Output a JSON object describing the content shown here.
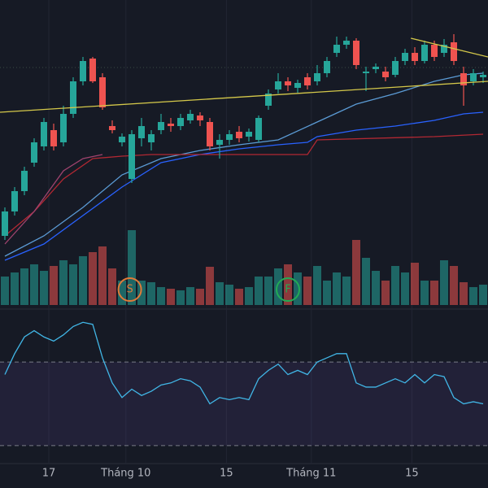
{
  "chart_data": {
    "type": "candlestick",
    "up_color": "#26a69a",
    "down_color": "#ef5350",
    "xlim": [
      -0.5,
      49.5
    ],
    "ylim": [
      25,
      400
    ],
    "open": [
      110,
      140,
      165,
      200,
      220,
      240,
      225,
      260,
      300,
      328,
      305,
      245,
      225,
      180,
      230,
      225,
      240,
      248,
      245,
      252,
      258,
      250,
      222,
      228,
      238,
      232,
      228,
      270,
      290,
      300,
      292,
      305,
      300,
      310,
      335,
      345,
      350,
      310,
      315,
      312,
      308,
      325,
      335,
      325,
      345,
      335,
      348,
      310,
      300,
      305
    ],
    "high": [
      145,
      170,
      195,
      230,
      255,
      248,
      270,
      305,
      330,
      330,
      310,
      252,
      236,
      240,
      255,
      240,
      260,
      255,
      260,
      265,
      262,
      255,
      235,
      240,
      245,
      242,
      258,
      290,
      310,
      305,
      302,
      310,
      320,
      330,
      355,
      355,
      353,
      318,
      322,
      318,
      330,
      340,
      342,
      350,
      350,
      352,
      358,
      318,
      315,
      312
    ],
    "low": [
      105,
      135,
      160,
      195,
      215,
      215,
      220,
      255,
      295,
      298,
      265,
      236,
      220,
      175,
      220,
      215,
      235,
      238,
      240,
      248,
      245,
      215,
      205,
      222,
      225,
      226,
      225,
      265,
      285,
      288,
      286,
      290,
      295,
      305,
      330,
      340,
      315,
      288,
      310,
      300,
      305,
      320,
      320,
      322,
      325,
      330,
      320,
      270,
      295,
      298
    ],
    "close": [
      140,
      165,
      190,
      225,
      250,
      220,
      260,
      300,
      325,
      300,
      268,
      240,
      232,
      235,
      245,
      235,
      250,
      245,
      255,
      260,
      252,
      220,
      228,
      235,
      230,
      238,
      255,
      285,
      300,
      295,
      298,
      295,
      310,
      325,
      345,
      350,
      320,
      312,
      318,
      305,
      325,
      335,
      325,
      345,
      330,
      345,
      325,
      295,
      310,
      308
    ],
    "volume": {
      "ylim": [
        0,
        100
      ],
      "values": [
        35,
        40,
        45,
        50,
        42,
        48,
        55,
        50,
        60,
        65,
        72,
        45,
        30,
        92,
        30,
        28,
        22,
        20,
        18,
        22,
        20,
        47,
        28,
        25,
        20,
        22,
        35,
        35,
        45,
        50,
        40,
        35,
        48,
        30,
        40,
        35,
        80,
        58,
        42,
        30,
        48,
        40,
        52,
        30,
        30,
        55,
        48,
        28,
        22,
        25
      ]
    },
    "lines": [
      {
        "color": "#5b9bd5",
        "x": [
          0,
          4,
          8,
          12,
          16,
          20,
          24,
          28,
          32,
          36,
          40,
          44,
          47,
          49
        ],
        "values": [
          85,
          110,
          145,
          185,
          205,
          215,
          222,
          228,
          250,
          272,
          285,
          300,
          308,
          310
        ]
      },
      {
        "color": "#2962ff",
        "x": [
          0,
          4,
          8,
          12,
          16,
          20,
          24,
          28,
          31,
          32,
          36,
          40,
          44,
          47,
          49
        ],
        "values": [
          80,
          100,
          135,
          170,
          200,
          210,
          217,
          222,
          225,
          232,
          240,
          245,
          252,
          260,
          262
        ]
      },
      {
        "color": "#b22833",
        "x": [
          0,
          3,
          6,
          9,
          12,
          15,
          20,
          31,
          32,
          44,
          49
        ],
        "values": [
          110,
          140,
          180,
          205,
          208,
          210,
          210,
          210,
          228,
          232,
          235
        ]
      },
      {
        "color": "#a0436e",
        "x": [
          0,
          3,
          6,
          8,
          10
        ],
        "values": [
          100,
          140,
          190,
          205,
          210
        ]
      }
    ],
    "trendlines": [
      {
        "color": "#d4c84a",
        "x": [
          -0.5,
          49.5
        ],
        "values": [
          262,
          300
        ]
      },
      {
        "color": "#d4c84a",
        "x": [
          41.6,
          49.5
        ],
        "values": [
          353,
          330
        ]
      }
    ],
    "rsi": {
      "ylim": [
        0,
        100
      ],
      "levels": [
        70,
        30
      ],
      "color": "#41b6e6",
      "values": [
        64,
        74,
        82,
        85,
        82,
        80,
        83,
        87,
        89,
        88,
        72,
        60,
        53,
        57,
        54,
        56,
        59,
        60,
        62,
        61,
        58,
        50,
        53,
        52,
        53,
        52,
        62,
        66,
        69,
        64,
        66,
        64,
        70,
        72,
        74,
        74,
        60,
        58,
        58,
        60,
        62,
        60,
        64,
        60,
        64,
        63,
        53,
        50,
        51,
        50
      ]
    },
    "xticks": [
      {
        "value": 4.5,
        "label": "17"
      },
      {
        "value": 12.4,
        "label": "Tháng 10"
      },
      {
        "value": 22.7,
        "label": "15"
      },
      {
        "value": 31.4,
        "label": "Tháng 11"
      },
      {
        "value": 41.7,
        "label": "15"
      }
    ],
    "markers": [
      {
        "label": "S",
        "x": 12.8,
        "color": "#e07b39"
      },
      {
        "label": "F",
        "x": 29,
        "color": "#22ab54"
      }
    ]
  }
}
